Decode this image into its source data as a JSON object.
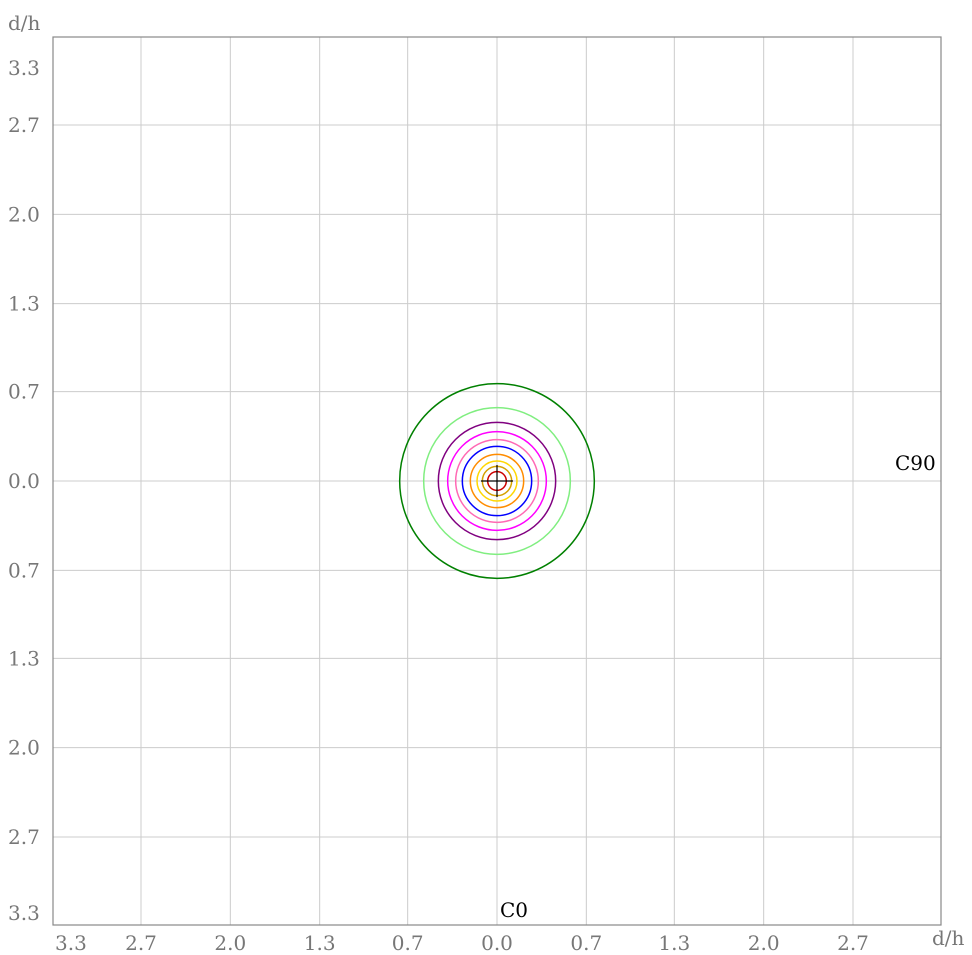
{
  "chart_data": {
    "type": "isocandela-contour",
    "x_unit_label": "d/h",
    "y_unit_label": "d/h",
    "x_ticks": [
      {
        "value": -3.33,
        "label": "3.3"
      },
      {
        "value": -2.67,
        "label": "2.7"
      },
      {
        "value": -2.0,
        "label": "2.0"
      },
      {
        "value": -1.33,
        "label": "1.3"
      },
      {
        "value": -0.67,
        "label": "0.7"
      },
      {
        "value": 0.0,
        "label": "0.0"
      },
      {
        "value": 0.67,
        "label": "0.7"
      },
      {
        "value": 1.33,
        "label": "1.3"
      },
      {
        "value": 2.0,
        "label": "2.0"
      },
      {
        "value": 2.67,
        "label": "2.7"
      }
    ],
    "y_ticks": [
      {
        "value": 3.33,
        "label": "3.3"
      },
      {
        "value": 2.67,
        "label": "2.7"
      },
      {
        "value": 2.0,
        "label": "2.0"
      },
      {
        "value": 1.33,
        "label": "1.3"
      },
      {
        "value": 0.67,
        "label": "0.7"
      },
      {
        "value": 0.0,
        "label": "0.0"
      },
      {
        "value": -0.67,
        "label": "0.7"
      },
      {
        "value": -1.33,
        "label": "1.3"
      },
      {
        "value": -2.0,
        "label": "2.0"
      },
      {
        "value": -2.67,
        "label": "2.7"
      },
      {
        "value": -3.33,
        "label": "3.3"
      }
    ],
    "xlim": [
      -3.33,
      3.33
    ],
    "ylim": [
      -3.33,
      3.33
    ],
    "grid": true,
    "grid_color": "#cccccc",
    "axis_color": "#888888",
    "plane_labels": {
      "bottom": "C0",
      "right": "C90"
    },
    "contours": [
      {
        "radius": 0.73,
        "color": "#008000"
      },
      {
        "radius": 0.55,
        "color": "#80ee80"
      },
      {
        "radius": 0.44,
        "color": "#800080"
      },
      {
        "radius": 0.37,
        "color": "#ff00ff"
      },
      {
        "radius": 0.31,
        "color": "#ff69b4"
      },
      {
        "radius": 0.26,
        "color": "#0000ff"
      },
      {
        "radius": 0.2,
        "color": "#ff8c00"
      },
      {
        "radius": 0.15,
        "color": "#ffd700"
      },
      {
        "radius": 0.11,
        "color": "#d4a000"
      },
      {
        "radius": 0.07,
        "color": "#cc0000"
      }
    ],
    "center_marker": {
      "x": 0.0,
      "y": 0.0,
      "color": "#000000"
    }
  }
}
